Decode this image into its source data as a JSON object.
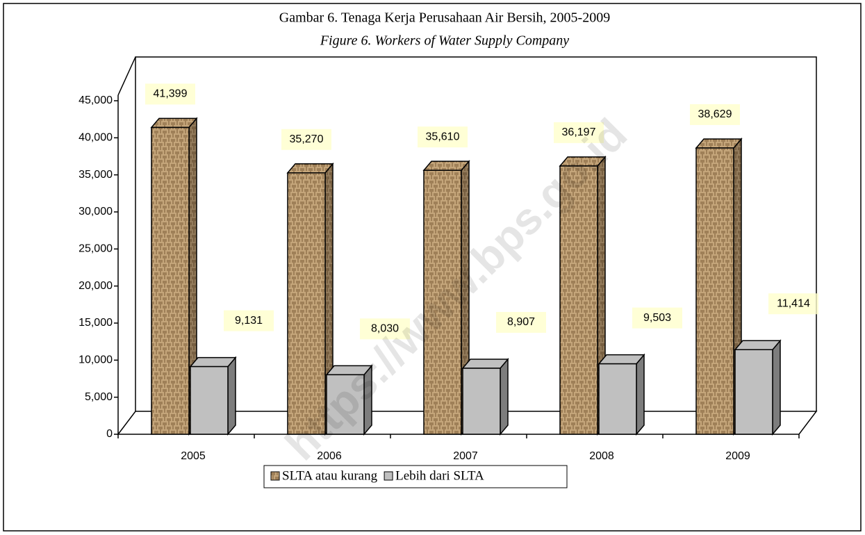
{
  "chart_data": {
    "type": "bar3d",
    "title": "Gambar 6. Tenaga Kerja Perusahaan Air Bersih, 2005-2009",
    "subtitle": "Figure 6. Workers of Water Supply Company",
    "watermark": "https://www.bps.go.id",
    "categories": [
      "2005",
      "2006",
      "2007",
      "2008",
      "2009"
    ],
    "series": [
      {
        "name": "SLTA atau kurang",
        "color": "#c4a57a",
        "values": [
          41399,
          35270,
          35610,
          36197,
          38629
        ],
        "value_labels": [
          "41,399",
          "35,270",
          "35,610",
          "36,197",
          "38,629"
        ]
      },
      {
        "name": "Lebih dari SLTA",
        "color": "#c0c0c0",
        "values": [
          9131,
          8030,
          8907,
          9503,
          11414
        ],
        "value_labels": [
          "9,131",
          "8,030",
          "8,907",
          "9,503",
          "11,414"
        ]
      }
    ],
    "ylim": [
      0,
      45000
    ],
    "yticks": [
      0,
      {
        "value": 5000,
        "label": "5,000"
      },
      {
        "value": 10000,
        "label": "10,000"
      },
      {
        "value": 15000,
        "label": "15,000"
      },
      {
        "value": 20000,
        "label": "20,000"
      },
      {
        "value": 25000,
        "label": "25,000"
      },
      {
        "value": 30000,
        "label": "30,000"
      },
      {
        "value": 35000,
        "label": "35,000"
      },
      {
        "value": 40000,
        "label": "40,000"
      },
      {
        "value": 45000,
        "label": "45,000"
      }
    ],
    "legend": "bottom"
  }
}
